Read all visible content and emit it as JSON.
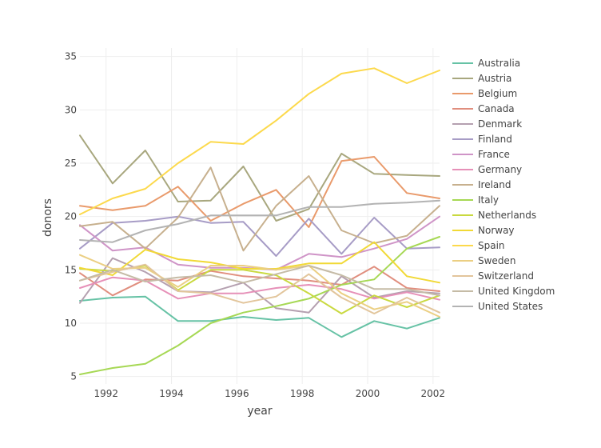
{
  "chart_data": {
    "type": "line",
    "title": "",
    "xlabel": "year",
    "ylabel": "donors",
    "xlim": [
      1991.2,
      2002.2
    ],
    "ylim": [
      4.3,
      35.8
    ],
    "xticks": [
      1992,
      1994,
      1996,
      1998,
      2000,
      2002
    ],
    "yticks": [
      5,
      10,
      15,
      20,
      25,
      30,
      35
    ],
    "grid": true,
    "legend_position": "right",
    "x": [
      1991.2,
      1992.2,
      1993.2,
      1994.2,
      1995.2,
      1996.2,
      1997.2,
      1998.2,
      1999.2,
      2000.2,
      2001.2,
      2002.2
    ],
    "series": [
      {
        "name": "Australia",
        "color": "#66c2a5",
        "values": [
          12.1,
          12.4,
          12.5,
          10.2,
          10.2,
          10.6,
          10.3,
          10.5,
          8.7,
          10.2,
          9.5,
          10.5
        ]
      },
      {
        "name": "Austria",
        "color": "#a8a77e",
        "values": [
          27.6,
          23.1,
          26.2,
          21.4,
          21.5,
          24.7,
          19.6,
          20.7,
          25.9,
          24.0,
          23.9,
          23.8
        ]
      },
      {
        "name": "Belgium",
        "color": "#e99a6b",
        "values": [
          21.0,
          20.6,
          21.0,
          22.8,
          19.6,
          21.2,
          22.5,
          19.0,
          25.2,
          25.6,
          22.2,
          21.7
        ]
      },
      {
        "name": "Canada",
        "color": "#e08e7e",
        "values": [
          14.7,
          12.6,
          14.1,
          14.0,
          14.9,
          14.4,
          14.2,
          14.0,
          13.6,
          15.3,
          13.3,
          13.0
        ]
      },
      {
        "name": "Denmark",
        "color": "#b5a0b0",
        "values": [
          11.9,
          16.1,
          14.8,
          13.0,
          12.9,
          13.8,
          11.4,
          11.0,
          14.4,
          12.4,
          13.0,
          12.8
        ]
      },
      {
        "name": "Finland",
        "color": "#a79cc6",
        "values": [
          17.0,
          19.4,
          19.6,
          20.0,
          19.4,
          19.5,
          16.3,
          19.8,
          16.5,
          19.9,
          17.0,
          17.1
        ]
      },
      {
        "name": "France",
        "color": "#cf94c7",
        "values": [
          19.2,
          16.8,
          17.1,
          15.5,
          15.2,
          15.2,
          15.0,
          16.5,
          16.2,
          17.0,
          17.9,
          20.0
        ]
      },
      {
        "name": "Germany",
        "color": "#e690b8",
        "values": [
          13.3,
          14.3,
          14.0,
          12.3,
          12.8,
          12.8,
          13.3,
          13.6,
          13.2,
          12.3,
          12.9,
          12.2
        ]
      },
      {
        "name": "Ireland",
        "color": "#c7b08e",
        "values": [
          19.1,
          19.5,
          17.0,
          19.9,
          24.6,
          16.8,
          21.0,
          23.8,
          18.7,
          17.5,
          18.2,
          21.0
        ]
      },
      {
        "name": "Italy",
        "color": "#a6d854",
        "values": [
          5.2,
          5.8,
          6.2,
          7.9,
          10.0,
          11.0,
          11.6,
          12.3,
          13.6,
          14.1,
          17.0,
          18.1
        ]
      },
      {
        "name": "Netherlands",
        "color": "#c9d93f",
        "values": [
          15.1,
          14.9,
          15.4,
          13.1,
          15.0,
          15.0,
          14.5,
          12.8,
          10.9,
          12.6,
          11.5,
          12.6
        ]
      },
      {
        "name": "Norway",
        "color": "#f1d936",
        "values": [
          15.2,
          14.5,
          16.9,
          16.0,
          15.7,
          15.1,
          15.1,
          15.6,
          15.6,
          17.6,
          14.4,
          13.8
        ]
      },
      {
        "name": "Spain",
        "color": "#fcd94c",
        "values": [
          20.2,
          21.7,
          22.6,
          25.0,
          27.0,
          26.8,
          29.0,
          31.5,
          33.4,
          33.9,
          32.5,
          33.7
        ]
      },
      {
        "name": "Sweden",
        "color": "#ebcf83",
        "values": [
          16.4,
          15.1,
          15.2,
          13.4,
          15.4,
          15.4,
          15.0,
          15.4,
          12.8,
          11.3,
          12.0,
          10.6
        ]
      },
      {
        "name": "Switzerland",
        "color": "#e2c59b",
        "values": [
          14.0,
          14.8,
          15.5,
          13.0,
          12.8,
          11.9,
          12.5,
          14.6,
          12.4,
          10.9,
          12.4,
          11.0
        ]
      },
      {
        "name": "United Kingdom",
        "color": "#c5bba6",
        "values": [
          14.0,
          15.0,
          13.9,
          14.3,
          14.5,
          13.8,
          14.6,
          15.4,
          14.5,
          13.2,
          13.2,
          12.6
        ]
      },
      {
        "name": "United States",
        "color": "#b3b3b3",
        "values": [
          17.8,
          17.6,
          18.7,
          19.3,
          20.1,
          20.1,
          20.1,
          20.9,
          20.9,
          21.2,
          21.3,
          21.5
        ]
      }
    ]
  }
}
